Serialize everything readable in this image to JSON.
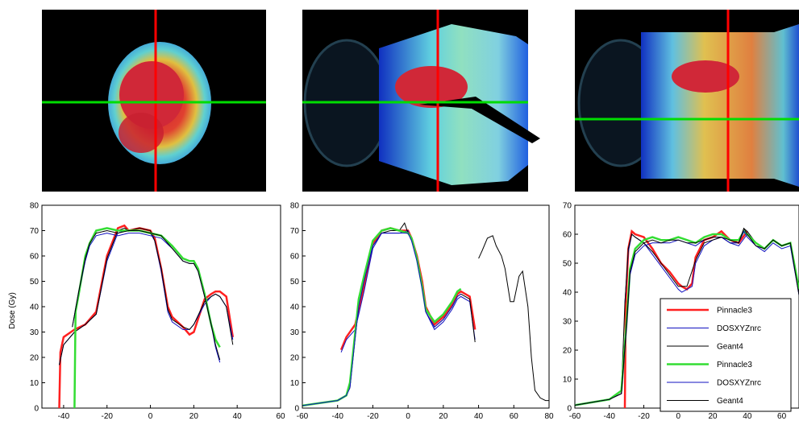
{
  "figure": {
    "ylabel": "Dose (Gy)",
    "colors": {
      "pinnacle": "#ff2020",
      "dosxyz": "#1010c0",
      "geant": "#000000",
      "pinnacle_alt": "#33dd33",
      "dose_map_bg": "#000000",
      "crosshair_vertical": "#ff0000",
      "crosshair_horizontal": "#00dd00"
    }
  },
  "legend": {
    "entries": [
      {
        "label": "Pinnacle3",
        "color": "#ff2020"
      },
      {
        "label": "DOSXYZnrc",
        "color": "#1010c0"
      },
      {
        "label": "Geant4",
        "color": "#000000"
      },
      {
        "label": "Pinnacle3",
        "color": "#33dd33"
      },
      {
        "label": "DOSXYZnrc",
        "color": "#1010c0"
      },
      {
        "label": "Geant4",
        "color": "#000000"
      }
    ]
  },
  "chart_data": [
    {
      "type": "line",
      "xlim": [
        -50,
        60
      ],
      "ylim": [
        0,
        80
      ],
      "xticks": [
        -40,
        -20,
        0,
        20,
        40,
        60
      ],
      "yticks": [
        0,
        10,
        20,
        30,
        40,
        50,
        60,
        70,
        80
      ],
      "ylabel": "Dose (Gy)",
      "series": [
        {
          "name": "Pinnacle3",
          "color": "#ff2020",
          "x": [
            -42,
            -41.5,
            -40,
            -35,
            -30,
            -25,
            -20,
            -15,
            -12,
            -10,
            -5,
            0,
            2,
            5,
            8,
            10,
            15,
            18,
            20,
            25,
            28,
            30,
            32,
            35,
            38
          ],
          "y": [
            0,
            22,
            28,
            31,
            33,
            38,
            60,
            71,
            72,
            70,
            71,
            70,
            67,
            55,
            40,
            36,
            32,
            29,
            30,
            43,
            45,
            46,
            46,
            44,
            28
          ]
        },
        {
          "name": "DOSXYZnrc",
          "color": "#1010c0",
          "x": [
            -42,
            -40,
            -35,
            -30,
            -25,
            -20,
            -15,
            -12,
            -10,
            -5,
            0,
            2,
            5,
            8,
            10,
            15,
            18,
            20,
            25,
            28,
            30,
            32,
            35,
            38
          ],
          "y": [
            17,
            25,
            30,
            33,
            37,
            58,
            69,
            70,
            70,
            70,
            69,
            66,
            54,
            38,
            34,
            31,
            31,
            33,
            41,
            44,
            45,
            44,
            40,
            27
          ]
        },
        {
          "name": "Geant4",
          "color": "#000000",
          "x": [
            -42,
            -40,
            -35,
            -30,
            -25,
            -20,
            -15,
            -12,
            -10,
            -5,
            0,
            2,
            5,
            8,
            10,
            15,
            18,
            20,
            25,
            28,
            30,
            32,
            35,
            38
          ],
          "y": [
            17,
            25,
            30,
            33,
            37,
            59,
            70,
            71,
            70,
            71,
            70,
            66,
            55,
            39,
            35,
            32,
            31,
            33,
            42,
            44,
            45,
            44,
            40,
            25
          ]
        },
        {
          "name": "Pinnacle3",
          "color": "#33dd33",
          "x": [
            -35,
            -34.5,
            -33,
            -30,
            -28,
            -25,
            -20,
            -15,
            -10,
            -5,
            0,
            5,
            10,
            15,
            18,
            20,
            22,
            25,
            28,
            30,
            32
          ],
          "y": [
            0,
            38,
            45,
            60,
            65,
            70,
            71,
            70,
            70,
            70,
            69,
            68,
            64,
            59,
            58,
            58,
            55,
            45,
            33,
            27,
            24
          ]
        },
        {
          "name": "DOSXYZnrc",
          "color": "#1010c0",
          "x": [
            -36,
            -33,
            -30,
            -28,
            -25,
            -20,
            -15,
            -10,
            -5,
            0,
            5,
            10,
            15,
            18,
            20,
            22,
            25,
            28,
            30,
            32
          ],
          "y": [
            32,
            46,
            58,
            64,
            68,
            69,
            68,
            69,
            69,
            68,
            67,
            63,
            58,
            57,
            57,
            54,
            44,
            33,
            24,
            18
          ]
        },
        {
          "name": "Geant4",
          "color": "#000000",
          "x": [
            -36,
            -33,
            -30,
            -28,
            -25,
            -20,
            -15,
            -10,
            -5,
            0,
            5,
            10,
            15,
            18,
            20,
            22,
            25,
            28,
            30,
            32
          ],
          "y": [
            32,
            46,
            59,
            65,
            69,
            70,
            69,
            70,
            70,
            69,
            68,
            63,
            58,
            57,
            57,
            54,
            44,
            33,
            25,
            19
          ]
        }
      ]
    },
    {
      "type": "line",
      "xlim": [
        -60,
        80
      ],
      "ylim": [
        0,
        80
      ],
      "xticks": [
        -60,
        -40,
        -20,
        0,
        20,
        40,
        60,
        80
      ],
      "yticks": [
        0,
        10,
        20,
        30,
        40,
        50,
        60,
        70,
        80
      ],
      "series": [
        {
          "name": "Pinnacle3",
          "color": "#ff2020",
          "x": [
            -38,
            -35,
            -30,
            -25,
            -20,
            -15,
            -10,
            -5,
            0,
            2,
            5,
            8,
            10,
            15,
            20,
            25,
            28,
            30,
            35,
            38
          ],
          "y": [
            23,
            28,
            33,
            48,
            65,
            70,
            71,
            70,
            70,
            67,
            60,
            50,
            40,
            33,
            36,
            41,
            45,
            46,
            44,
            31
          ]
        },
        {
          "name": "DOSXYZnrc",
          "color": "#1010c0",
          "x": [
            -38,
            -35,
            -30,
            -25,
            -20,
            -15,
            -10,
            -5,
            0,
            2,
            5,
            8,
            10,
            15,
            20,
            25,
            28,
            30,
            35,
            38
          ],
          "y": [
            22,
            27,
            31,
            46,
            63,
            69,
            69,
            69,
            70,
            66,
            59,
            48,
            38,
            31,
            34,
            39,
            43,
            44,
            42,
            27
          ]
        },
        {
          "name": "Geant4",
          "color": "#000000",
          "x": [
            -60,
            -40,
            -35,
            -33,
            -30,
            -28,
            -25,
            -20,
            -15,
            -10,
            -5,
            -2,
            0,
            2,
            5,
            8,
            10,
            15,
            20,
            25,
            28,
            30,
            35,
            38
          ],
          "y": [
            1,
            3,
            5,
            8,
            28,
            40,
            50,
            64,
            69,
            70,
            70,
            73,
            69,
            66,
            59,
            48,
            38,
            32,
            35,
            40,
            44,
            45,
            43,
            26
          ]
        },
        {
          "name": "Pinnacle3",
          "color": "#33dd33",
          "x": [
            -60,
            -40,
            -35,
            -33,
            -30,
            -28,
            -25,
            -20,
            -15,
            -10,
            -5,
            0,
            2,
            5,
            8,
            10,
            15,
            20,
            25,
            28,
            30
          ],
          "y": [
            1,
            3,
            5,
            10,
            30,
            43,
            52,
            66,
            70,
            71,
            70,
            69,
            67,
            59,
            48,
            39,
            34,
            37,
            42,
            46,
            47
          ]
        },
        {
          "name": "DOSXYZnrc",
          "color": "#1010c0",
          "x": [
            -60,
            -40,
            -35,
            -33,
            -30,
            -28,
            -25,
            -20,
            -15,
            -10,
            -5,
            0,
            2,
            5,
            8,
            10,
            15,
            20,
            25,
            28,
            30
          ],
          "y": [
            1,
            3,
            5,
            8,
            28,
            40,
            50,
            64,
            69,
            69,
            69,
            69,
            66,
            58,
            47,
            38,
            32,
            35,
            40,
            44,
            45
          ]
        },
        {
          "name": "Geant4",
          "color": "#000000",
          "x": [
            40,
            42,
            45,
            48,
            50,
            53,
            55,
            58,
            60,
            63,
            65,
            68,
            70,
            72,
            75,
            78,
            80
          ],
          "y": [
            59,
            62,
            67,
            68,
            64,
            60,
            55,
            42,
            42,
            52,
            54,
            40,
            20,
            7,
            4,
            3,
            3
          ]
        }
      ]
    },
    {
      "type": "line",
      "xlim": [
        -60,
        70
      ],
      "ylim": [
        0,
        70
      ],
      "xticks": [
        -60,
        -40,
        -20,
        0,
        20,
        40,
        60
      ],
      "yticks": [
        0,
        10,
        20,
        30,
        40,
        50,
        60,
        70
      ],
      "series": [
        {
          "name": "Pinnacle3",
          "color": "#ff2020",
          "x": [
            -31,
            -30.5,
            -29,
            -27,
            -25,
            -20,
            -15,
            -10,
            -5,
            0,
            2,
            5,
            8,
            10,
            15,
            20,
            25,
            30,
            35,
            40
          ],
          "y": [
            0,
            36,
            55,
            61,
            60,
            59,
            55,
            50,
            47,
            43,
            42,
            41,
            43,
            52,
            58,
            59,
            61,
            58,
            57,
            61
          ]
        },
        {
          "name": "DOSXYZnrc",
          "color": "#1010c0",
          "x": [
            -31,
            -29,
            -27,
            -25,
            -20,
            -15,
            -10,
            -5,
            0,
            2,
            5,
            8,
            10,
            15,
            20,
            25,
            30,
            35,
            40
          ],
          "y": [
            36,
            54,
            60,
            59,
            57,
            53,
            49,
            45,
            41,
            40,
            41,
            42,
            50,
            56,
            58,
            59,
            57,
            56,
            60
          ]
        },
        {
          "name": "Geant4",
          "color": "#000000",
          "x": [
            -60,
            -40,
            -33,
            -31,
            -29,
            -27,
            -25,
            -20,
            -15,
            -10,
            -5,
            0,
            5,
            10,
            15,
            20,
            25,
            30,
            35,
            38,
            40,
            45,
            50,
            55,
            60,
            65,
            70
          ],
          "y": [
            1,
            3,
            5,
            36,
            55,
            60,
            59,
            57,
            54,
            50,
            46,
            42,
            42,
            51,
            57,
            58,
            59,
            57,
            57,
            62,
            61,
            57,
            55,
            58,
            56,
            57,
            40
          ]
        },
        {
          "name": "Pinnacle3",
          "color": "#33dd33",
          "x": [
            -60,
            -40,
            -33,
            -30,
            -28,
            -25,
            -20,
            -15,
            -10,
            -5,
            0,
            5,
            10,
            15,
            20,
            25,
            30,
            35,
            38,
            40,
            45,
            50,
            55,
            60,
            65,
            70
          ],
          "y": [
            1,
            3,
            6,
            30,
            48,
            55,
            58,
            59,
            58,
            58,
            59,
            58,
            57,
            59,
            60,
            60,
            58,
            58,
            61,
            60,
            57,
            55,
            58,
            56,
            57,
            41
          ]
        },
        {
          "name": "DOSXYZnrc",
          "color": "#1010c0",
          "x": [
            -60,
            -40,
            -33,
            -30,
            -28,
            -25,
            -20,
            -15,
            -10,
            -5,
            0,
            5,
            10,
            15,
            20,
            25,
            30,
            35,
            38,
            40,
            45,
            50,
            55,
            60,
            65,
            70
          ],
          "y": [
            1,
            3,
            5,
            28,
            46,
            53,
            56,
            57,
            57,
            57,
            58,
            57,
            56,
            58,
            59,
            59,
            57,
            57,
            61,
            59,
            56,
            54,
            57,
            55,
            56,
            39
          ]
        },
        {
          "name": "Geant4",
          "color": "#000000",
          "x": [
            -60,
            -40,
            -33,
            -30,
            -28,
            -25,
            -20,
            -15,
            -10,
            -5,
            0,
            5,
            10,
            15,
            20,
            25,
            30,
            35,
            38,
            40,
            45,
            50,
            55,
            60,
            65,
            70
          ],
          "y": [
            1,
            3,
            5,
            29,
            47,
            54,
            57,
            58,
            57,
            58,
            58,
            57,
            57,
            58,
            59,
            59,
            58,
            57,
            62,
            60,
            56,
            55,
            58,
            56,
            57,
            39
          ]
        }
      ]
    }
  ]
}
